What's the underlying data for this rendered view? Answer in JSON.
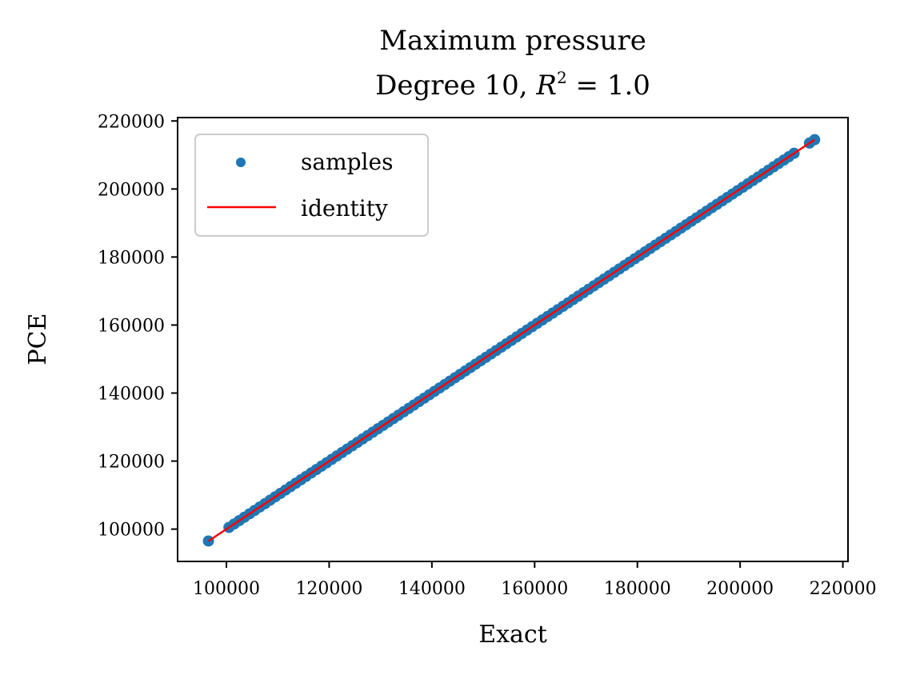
{
  "chart_data": {
    "type": "scatter",
    "title": "Maximum pressure",
    "subtitle_prefix": "Degree 10, ",
    "subtitle_math": "R",
    "subtitle_sup": "2",
    "subtitle_suffix": " = 1.0",
    "xlabel": "Exact",
    "ylabel": "PCE",
    "xlim": [
      90500,
      221000
    ],
    "ylim": [
      90500,
      221000
    ],
    "xticks": [
      100000,
      120000,
      140000,
      160000,
      180000,
      200000,
      220000
    ],
    "yticks": [
      100000,
      120000,
      140000,
      160000,
      180000,
      200000,
      220000
    ],
    "xtick_labels": [
      "100000",
      "120000",
      "140000",
      "160000",
      "180000",
      "200000",
      "220000"
    ],
    "ytick_labels": [
      "100000",
      "120000",
      "140000",
      "160000",
      "180000",
      "200000",
      "220000"
    ],
    "grid": false,
    "legend": {
      "placement": "top-left",
      "entries": [
        {
          "label": "samples",
          "kind": "marker",
          "color": "#1f77b4"
        },
        {
          "label": "identity",
          "kind": "line",
          "color": "#ff0000"
        }
      ]
    },
    "series": [
      {
        "name": "samples",
        "color": "#1f77b4",
        "x": [
          96500,
          100500,
          101500,
          102500,
          103500,
          104500,
          105500,
          106500,
          107500,
          108500,
          109500,
          110500,
          111500,
          112500,
          113500,
          114500,
          115500,
          116500,
          117500,
          118500,
          119500,
          120500,
          121500,
          122500,
          123500,
          124500,
          125500,
          126500,
          127500,
          128500,
          129500,
          130500,
          131500,
          132500,
          133500,
          134500,
          135500,
          136500,
          137500,
          138500,
          139500,
          140500,
          141500,
          142500,
          143500,
          144500,
          145500,
          146500,
          147500,
          148500,
          149500,
          150500,
          151500,
          152500,
          153500,
          154500,
          155500,
          156500,
          157500,
          158500,
          159500,
          160500,
          161500,
          162500,
          163500,
          164500,
          165500,
          166500,
          167500,
          168500,
          169500,
          170500,
          171500,
          172500,
          173500,
          174500,
          175500,
          176500,
          177500,
          178500,
          179500,
          180500,
          181500,
          182500,
          183500,
          184500,
          185500,
          186500,
          187500,
          188500,
          189500,
          190500,
          191500,
          192500,
          193500,
          194500,
          195500,
          196500,
          197500,
          198500,
          199500,
          200500,
          201500,
          202500,
          203500,
          204500,
          205500,
          206500,
          207500,
          208500,
          209500,
          210500,
          213500,
          214500
        ],
        "y": [
          96500,
          100500,
          101500,
          102500,
          103500,
          104500,
          105500,
          106500,
          107500,
          108500,
          109500,
          110500,
          111500,
          112500,
          113500,
          114500,
          115500,
          116500,
          117500,
          118500,
          119500,
          120500,
          121500,
          122500,
          123500,
          124500,
          125500,
          126500,
          127500,
          128500,
          129500,
          130500,
          131500,
          132500,
          133500,
          134500,
          135500,
          136500,
          137500,
          138500,
          139500,
          140500,
          141500,
          142500,
          143500,
          144500,
          145500,
          146500,
          147500,
          148500,
          149500,
          150500,
          151500,
          152500,
          153500,
          154500,
          155500,
          156500,
          157500,
          158500,
          159500,
          160500,
          161500,
          162500,
          163500,
          164500,
          165500,
          166500,
          167500,
          168500,
          169500,
          170500,
          171500,
          172500,
          173500,
          174500,
          175500,
          176500,
          177500,
          178500,
          179500,
          180500,
          181500,
          182500,
          183500,
          184500,
          185500,
          186500,
          187500,
          188500,
          189500,
          190500,
          191500,
          192500,
          193500,
          194500,
          195500,
          196500,
          197500,
          198500,
          199500,
          200500,
          201500,
          202500,
          203500,
          204500,
          205500,
          206500,
          207500,
          208500,
          209500,
          210500,
          213500,
          214500
        ]
      },
      {
        "name": "identity",
        "color": "#ff0000",
        "x": [
          96500,
          214500
        ],
        "y": [
          96500,
          214500
        ]
      }
    ]
  }
}
